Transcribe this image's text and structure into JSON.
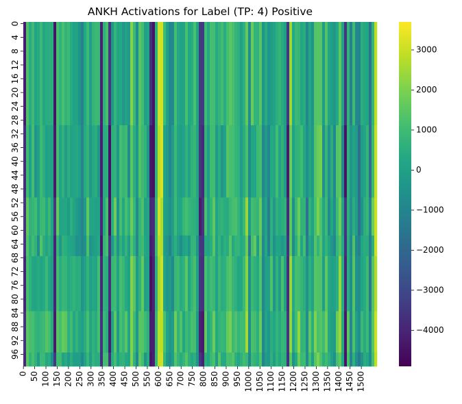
{
  "chart_data": {
    "type": "heatmap",
    "title": "ANKH Activations for Label (TP: 4) Positive",
    "xlabel": "",
    "ylabel": "",
    "n_rows": 100,
    "n_cols": 1570,
    "x_tick_labels": [
      "0",
      "50",
      "100",
      "150",
      "200",
      "250",
      "300",
      "350",
      "400",
      "450",
      "500",
      "550",
      "600",
      "650",
      "700",
      "750",
      "800",
      "850",
      "900",
      "950",
      "1000",
      "1050",
      "1100",
      "1150",
      "1200",
      "1250",
      "1300",
      "1350",
      "1400",
      "1450",
      "1500"
    ],
    "y_tick_labels": [
      "0",
      "4",
      "8",
      "12",
      "16",
      "20",
      "24",
      "28",
      "32",
      "36",
      "40",
      "44",
      "48",
      "52",
      "56",
      "60",
      "64",
      "68",
      "72",
      "76",
      "80",
      "84",
      "88",
      "92",
      "96"
    ],
    "colorbar": {
      "colormap": "viridis",
      "vmin": -4900,
      "vmax": 3700,
      "tick_values": [
        3000,
        2000,
        1000,
        0,
        -1000,
        -2000,
        -3000,
        -4000
      ],
      "tick_labels": [
        "3000",
        "2000",
        "1000",
        "0",
        "−1000",
        "−2000",
        "−3000",
        "−4000"
      ]
    },
    "notable_low_columns": [
      10,
      140,
      345,
      385,
      560,
      575,
      600,
      608,
      615,
      790,
      800,
      1180,
      1430,
      1435
    ],
    "notable_high_columns": [
      598,
      610,
      1565
    ],
    "row_bands": [
      {
        "rows": [
          0,
          30
        ],
        "mean": 700
      },
      {
        "rows": [
          30,
          51
        ],
        "mean": 450
      },
      {
        "rows": [
          51,
          62
        ],
        "mean": 750
      },
      {
        "rows": [
          62,
          68
        ],
        "mean": 380
      },
      {
        "rows": [
          68,
          84
        ],
        "mean": 800
      },
      {
        "rows": [
          84,
          96
        ],
        "mean": 1100
      },
      {
        "rows": [
          96,
          100
        ],
        "mean": 800
      }
    ]
  }
}
